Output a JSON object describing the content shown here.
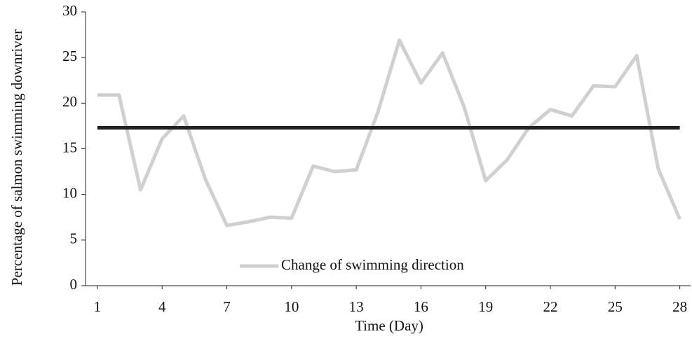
{
  "chart_data": {
    "type": "line",
    "x_label": "Time (Day)",
    "y_label": "Percentage of salmon swimming downriver",
    "series": [
      {
        "name": "Change of swimming direction",
        "color": "#d0d0d0",
        "x": [
          1,
          2,
          3,
          4,
          5,
          6,
          7,
          8,
          9,
          10,
          11,
          12,
          13,
          14,
          15,
          16,
          17,
          18,
          19,
          20,
          21,
          22,
          23,
          24,
          25,
          26,
          27,
          28
        ],
        "values": [
          20.9,
          20.9,
          10.5,
          16.1,
          18.6,
          11.7,
          6.6,
          7.0,
          7.5,
          7.4,
          13.1,
          12.5,
          12.7,
          19.0,
          26.9,
          22.2,
          25.5,
          19.6,
          11.5,
          13.8,
          17.3,
          19.3,
          18.6,
          21.9,
          21.8,
          25.2,
          12.8,
          7.3
        ]
      },
      {
        "color": "#222222",
        "x": [
          1,
          28
        ],
        "values": [
          17.3,
          17.3
        ]
      }
    ],
    "xlim": [
      0.45,
      28.5
    ],
    "xticks": [
      1,
      4,
      7,
      10,
      13,
      16,
      19,
      22,
      25,
      28
    ],
    "ylim": [
      0,
      30
    ],
    "yticks": [
      0,
      5,
      10,
      15,
      20,
      25,
      30
    ],
    "legend": "bottom-center"
  }
}
